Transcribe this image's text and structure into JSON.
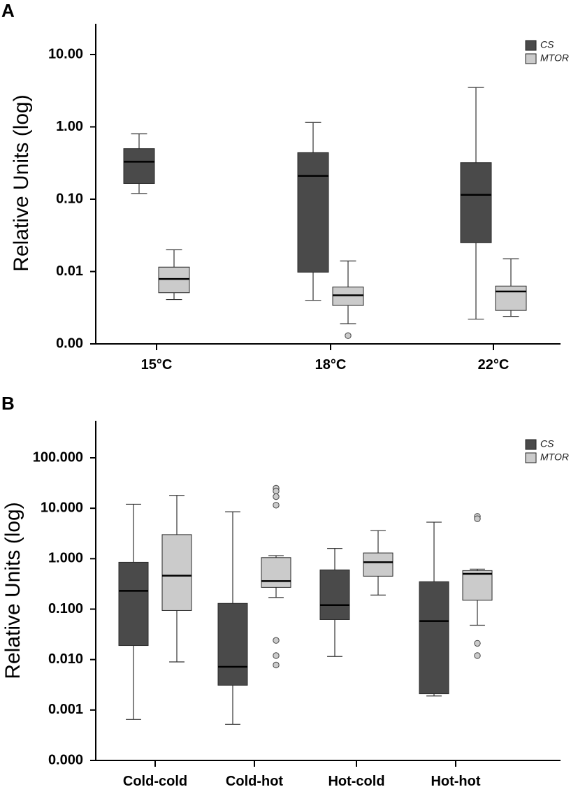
{
  "colors": {
    "cs": "#4a4a4a",
    "mtor": "#cbcbcb",
    "median": "#000000",
    "whisker": "#333333",
    "outlier_fill": "#cbcbcb"
  },
  "chart_data": [
    {
      "panel": "A",
      "type": "box",
      "ylabel": "Relative Units (log)",
      "yscale": "log",
      "ylim": [
        0.001,
        30
      ],
      "yticks": [
        {
          "value": 10,
          "label": "10.00"
        },
        {
          "value": 1,
          "label": "1.00"
        },
        {
          "value": 0.1,
          "label": "0.10"
        },
        {
          "value": 0.01,
          "label": "0.01"
        },
        {
          "value": 0.001,
          "label": "0.00"
        }
      ],
      "categories": [
        "15°C",
        "18°C",
        "22°C"
      ],
      "legend": [
        "CS",
        "MTOR"
      ],
      "legend_position": "top-right",
      "series": [
        {
          "name": "CS",
          "boxes": [
            {
              "min": 0.12,
              "q1": 0.165,
              "median": 0.33,
              "q3": 0.5,
              "max": 0.8,
              "outliers": []
            },
            {
              "min": 0.004,
              "q1": 0.0098,
              "median": 0.21,
              "q3": 0.44,
              "max": 1.15,
              "outliers": []
            },
            {
              "min": 0.0022,
              "q1": 0.025,
              "median": 0.115,
              "q3": 0.32,
              "max": 3.5,
              "outliers": []
            }
          ]
        },
        {
          "name": "MTOR",
          "boxes": [
            {
              "min": 0.0041,
              "q1": 0.0051,
              "median": 0.0079,
              "q3": 0.0115,
              "max": 0.02,
              "outliers": []
            },
            {
              "min": 0.0019,
              "q1": 0.0034,
              "median": 0.0047,
              "q3": 0.0061,
              "max": 0.014,
              "outliers": [
                0.0013
              ]
            },
            {
              "min": 0.0024,
              "q1": 0.0029,
              "median": 0.0053,
              "q3": 0.0063,
              "max": 0.015,
              "outliers": []
            }
          ]
        }
      ]
    },
    {
      "panel": "B",
      "type": "box",
      "ylabel": "Relative Units (log)",
      "yscale": "log",
      "ylim": [
        0.0001,
        500
      ],
      "yticks": [
        {
          "value": 100,
          "label": "100.000"
        },
        {
          "value": 10,
          "label": "10.000"
        },
        {
          "value": 1,
          "label": "1.000"
        },
        {
          "value": 0.1,
          "label": "0.100"
        },
        {
          "value": 0.01,
          "label": "0.010"
        },
        {
          "value": 0.001,
          "label": "0.001"
        },
        {
          "value": 0.0001,
          "label": "0.000"
        }
      ],
      "categories": [
        "Cold-cold",
        "Cold-hot",
        "Hot-cold",
        "Hot-hot"
      ],
      "legend": [
        "CS",
        "MTOR"
      ],
      "legend_position": "top-right",
      "series": [
        {
          "name": "CS",
          "boxes": [
            {
              "min": 0.00065,
              "q1": 0.019,
              "median": 0.23,
              "q3": 0.85,
              "max": 12,
              "outliers": []
            },
            {
              "min": 0.00052,
              "q1": 0.0031,
              "median": 0.0072,
              "q3": 0.13,
              "max": 8.5,
              "outliers": []
            },
            {
              "min": 0.0115,
              "q1": 0.062,
              "median": 0.12,
              "q3": 0.6,
              "max": 1.6,
              "outliers": []
            },
            {
              "min": 0.0019,
              "q1": 0.0021,
              "median": 0.058,
              "q3": 0.35,
              "max": 5.3,
              "outliers": []
            }
          ]
        },
        {
          "name": "MTOR",
          "boxes": [
            {
              "min": 0.009,
              "q1": 0.094,
              "median": 0.46,
              "q3": 3,
              "max": 18,
              "outliers": []
            },
            {
              "min": 0.17,
              "q1": 0.27,
              "median": 0.36,
              "q3": 1.05,
              "max": 1.15,
              "outliers": [
                25,
                22,
                17,
                11.5,
                0.024,
                0.012,
                0.0078
              ]
            },
            {
              "min": 0.19,
              "q1": 0.45,
              "median": 0.85,
              "q3": 1.3,
              "max": 3.6,
              "outliers": []
            },
            {
              "min": 0.048,
              "q1": 0.15,
              "median": 0.5,
              "q3": 0.58,
              "max": 0.62,
              "outliers": [
                6.9,
                6.2,
                0.021,
                0.012
              ]
            }
          ]
        }
      ]
    }
  ]
}
